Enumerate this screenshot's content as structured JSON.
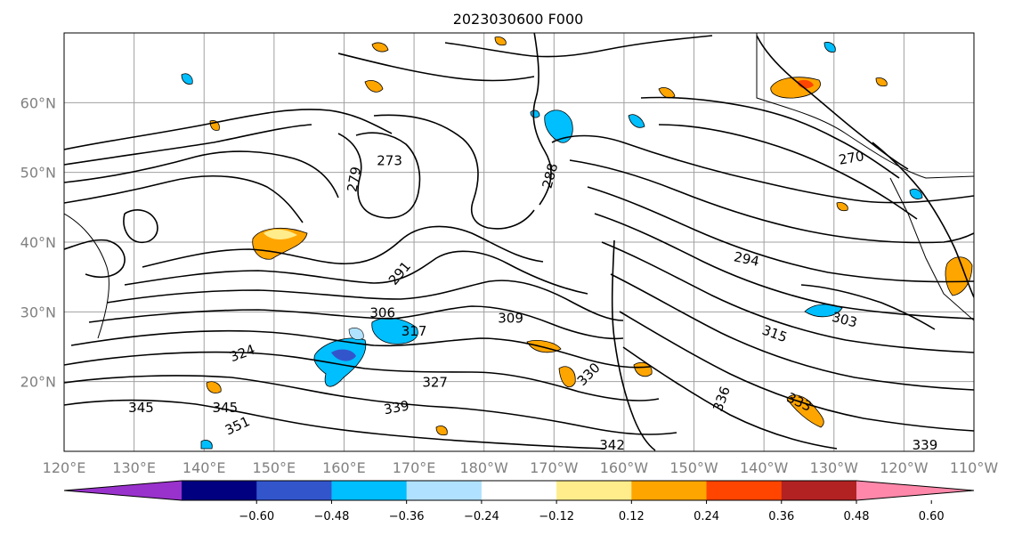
{
  "title": "2023030600 F000",
  "map": {
    "lat_ticks": [
      {
        "lat": 60,
        "label": "60°N"
      },
      {
        "lat": 50,
        "label": "50°N"
      },
      {
        "lat": 40,
        "label": "40°N"
      },
      {
        "lat": 30,
        "label": "30°N"
      },
      {
        "lat": 20,
        "label": "20°N"
      }
    ],
    "lon_ticks": [
      {
        "lon": 120,
        "label": "120°E"
      },
      {
        "lon": 130,
        "label": "130°E"
      },
      {
        "lon": 140,
        "label": "140°E"
      },
      {
        "lon": 150,
        "label": "150°E"
      },
      {
        "lon": 160,
        "label": "160°E"
      },
      {
        "lon": 170,
        "label": "170°E"
      },
      {
        "lon": 180,
        "label": "180°W"
      },
      {
        "lon": 190,
        "label": "170°W"
      },
      {
        "lon": 200,
        "label": "160°W"
      },
      {
        "lon": 210,
        "label": "150°W"
      },
      {
        "lon": 220,
        "label": "140°W"
      },
      {
        "lon": 230,
        "label": "130°W"
      },
      {
        "lon": 240,
        "label": "120°W"
      },
      {
        "lon": 250,
        "label": "110°W"
      }
    ],
    "lon_range": [
      120,
      250
    ],
    "lat_range": [
      10,
      70
    ],
    "grid": true,
    "contour_labels": [
      {
        "text": "273",
        "lon": 166.5,
        "lat": 51.6,
        "rot": 0
      },
      {
        "text": "279",
        "lon": 161.5,
        "lat": 49.0,
        "rot": -80
      },
      {
        "text": "288",
        "lon": 189.5,
        "lat": 49.5,
        "rot": -75
      },
      {
        "text": "270",
        "lon": 232.5,
        "lat": 52.0,
        "rot": -10
      },
      {
        "text": "291",
        "lon": 168.0,
        "lat": 35.5,
        "rot": -50
      },
      {
        "text": "294",
        "lon": 217.5,
        "lat": 37.5,
        "rot": 12
      },
      {
        "text": "303",
        "lon": 231.5,
        "lat": 28.8,
        "rot": 15
      },
      {
        "text": "309",
        "lon": 183.8,
        "lat": 29.0,
        "rot": 0
      },
      {
        "text": "315",
        "lon": 221.5,
        "lat": 26.8,
        "rot": 20
      },
      {
        "text": "317",
        "lon": 170.0,
        "lat": 27.2,
        "rot": 0
      },
      {
        "text": "306",
        "lon": 165.5,
        "lat": 29.8,
        "rot": 0
      },
      {
        "text": "324",
        "lon": 145.5,
        "lat": 24.0,
        "rot": -20
      },
      {
        "text": "327",
        "lon": 173.0,
        "lat": 19.8,
        "rot": 0
      },
      {
        "text": "330",
        "lon": 195.0,
        "lat": 21.0,
        "rot": -45
      },
      {
        "text": "339",
        "lon": 167.5,
        "lat": 16.2,
        "rot": -10
      },
      {
        "text": "345",
        "lon": 143.0,
        "lat": 16.2,
        "rot": 0
      },
      {
        "text": "351",
        "lon": 144.8,
        "lat": 13.6,
        "rot": -25
      },
      {
        "text": "345",
        "lon": 131.0,
        "lat": 16.2,
        "rot": 0
      },
      {
        "text": "342",
        "lon": 198.3,
        "lat": 10.8,
        "rot": 0
      },
      {
        "text": "339",
        "lon": 243.0,
        "lat": 10.8,
        "rot": 0
      },
      {
        "text": "336",
        "lon": 214.0,
        "lat": 17.5,
        "rot": -70
      },
      {
        "text": "333",
        "lon": 225.0,
        "lat": 17.0,
        "rot": 25
      }
    ]
  },
  "colorbar": {
    "colors": [
      "#9932CC",
      "#000080",
      "#3355CC",
      "#00BFFF",
      "#B0E2FF",
      "#FFFFFF",
      "#FFEC8B",
      "#FFA500",
      "#FF4500",
      "#B22222",
      "#FF88AA"
    ],
    "ticks": [
      {
        "value": -0.6,
        "label": "−0.60"
      },
      {
        "value": -0.48,
        "label": "−0.48"
      },
      {
        "value": -0.36,
        "label": "−0.36"
      },
      {
        "value": -0.24,
        "label": "−0.24"
      },
      {
        "value": -0.12,
        "label": "−0.12"
      },
      {
        "value": 0.12,
        "label": "0.12"
      },
      {
        "value": 0.24,
        "label": "0.24"
      },
      {
        "value": 0.36,
        "label": "0.36"
      },
      {
        "value": 0.48,
        "label": "0.48"
      },
      {
        "value": 0.6,
        "label": "0.60"
      }
    ],
    "extend": "both"
  }
}
